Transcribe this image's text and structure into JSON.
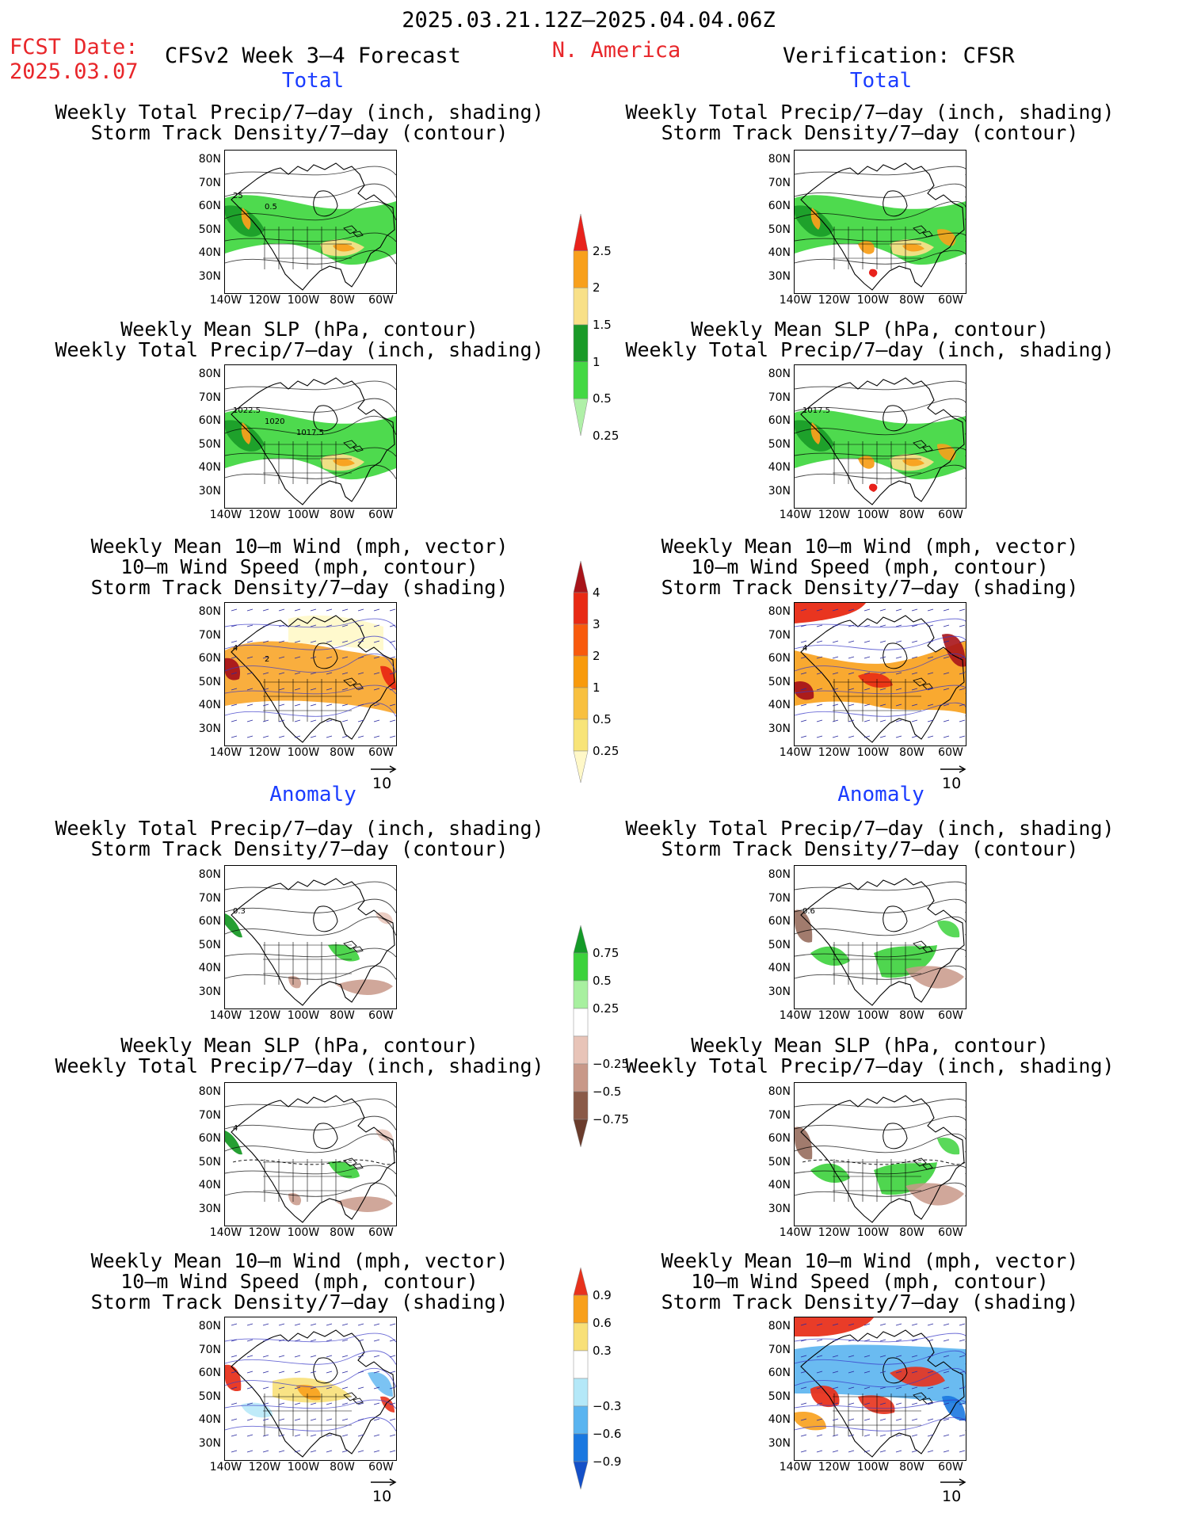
{
  "header": {
    "period": "2025.03.21.12Z–2025.04.04.06Z",
    "fcst_label": "FCST Date:",
    "fcst_date": "2025.03.07",
    "model_title": "CFSv2 Week 3–4 Forecast",
    "region": "N. America",
    "verification": "Verification: CFSR"
  },
  "sections": {
    "total": "Total",
    "anomaly": "Anomaly"
  },
  "panel_titles": {
    "precip_storm": [
      "Weekly Total Precip/7–day (inch, shading)",
      "Storm Track Density/7–day (contour)"
    ],
    "slp_precip": [
      "Weekly Mean SLP (hPa, contour)",
      "Weekly Total Precip/7–day (inch, shading)"
    ],
    "wind_storm": [
      "Weekly Mean 10–m Wind (mph, vector)",
      "10–m Wind Speed (mph, contour)",
      "Storm Track Density/7–day (shading)"
    ]
  },
  "axes": {
    "lat_ticks": [
      "80N",
      "70N",
      "60N",
      "50N",
      "40N",
      "30N"
    ],
    "lon_ticks": [
      "140W",
      "120W",
      "100W",
      "80W",
      "60W"
    ]
  },
  "vector_reference": "10",
  "map_labels": {
    "fcst_precip_storm": [
      "25",
      "0.5"
    ],
    "fcst_slp_precip": [
      "1022.5",
      "1020",
      "1017.5"
    ],
    "fcst_wind_storm": [
      "4",
      "2"
    ],
    "obs_wind_storm": [
      "4"
    ],
    "obs_slp_precip": [
      "1017.5"
    ],
    "anom_fcst_precip_storm": [
      "0.3"
    ],
    "anom_obs_precip_storm": [
      "0.6"
    ],
    "anom_fcst_slp_precip": [
      "4"
    ]
  },
  "colorbars": {
    "total_precip": {
      "labels": [
        "2.5",
        "2",
        "1.5",
        "1",
        "0.5",
        "0.25"
      ],
      "colors": [
        "#e8221c",
        "#f8a01c",
        "#f8e088",
        "#1a9a28",
        "#44d844",
        "#b0f0a8"
      ]
    },
    "total_storm": {
      "labels": [
        "4",
        "3",
        "2",
        "1",
        "0.5",
        "0.25"
      ],
      "colors": [
        "#a8141a",
        "#e82a14",
        "#f85a0c",
        "#f89a0c",
        "#f8c040",
        "#f8e478",
        "#fff8c8"
      ]
    },
    "anom_precip": {
      "labels": [
        "0.75",
        "0.5",
        "0.25",
        "−0.25",
        "−0.5",
        "−0.75"
      ],
      "colors": [
        "#149a28",
        "#3cd23c",
        "#a8f0a0",
        "#ffffff",
        "#e8c4b8",
        "#c89888",
        "#8a5a48",
        "#6a3c2c"
      ]
    },
    "anom_storm": {
      "labels": [
        "0.9",
        "0.6",
        "0.3",
        "−0.3",
        "−0.6",
        "−0.9"
      ],
      "colors": [
        "#e8321c",
        "#f8a01c",
        "#f8e078",
        "#ffffff",
        "#b4e8f8",
        "#5ab4f0",
        "#1a78e0",
        "#1450c8"
      ]
    }
  },
  "colors": {
    "header_red": "#e8262a",
    "section_blue": "#1a3cff",
    "precip_green": "#3cc83c",
    "storm_orange": "#f8a01c",
    "dry_brown": "#c89888",
    "wind_blue": "#5ab4f0"
  }
}
